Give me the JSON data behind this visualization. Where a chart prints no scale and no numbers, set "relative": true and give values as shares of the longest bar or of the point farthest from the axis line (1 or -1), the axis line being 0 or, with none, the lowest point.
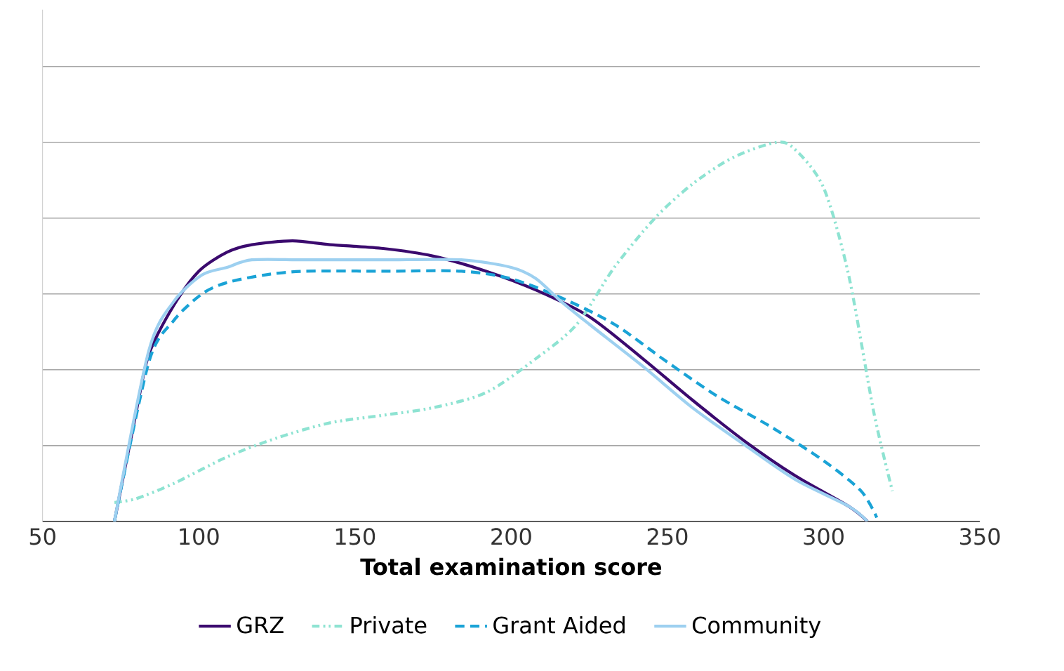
{
  "chart_data": {
    "type": "line",
    "relative": true,
    "xlabel": "Total examination score",
    "xlim": [
      50,
      350
    ],
    "xticks": [
      50,
      100,
      150,
      200,
      250,
      300,
      350
    ],
    "grid": "y",
    "legend": "bottom",
    "series": [
      {
        "name": "GRZ",
        "color": "#3b0a6e",
        "line_style": "solid",
        "x": [
          73,
          80,
          84,
          92,
          100,
          109,
          117,
          130,
          142,
          159,
          175,
          192,
          208,
          225,
          242,
          258,
          275,
          291,
          308,
          314
        ],
        "values": [
          0,
          0.29,
          0.44,
          0.57,
          0.66,
          0.71,
          0.73,
          0.74,
          0.73,
          0.72,
          0.7,
          0.66,
          0.61,
          0.54,
          0.43,
          0.32,
          0.21,
          0.12,
          0.04,
          0
        ]
      },
      {
        "name": "Private",
        "color": "#8ee3d2",
        "line_style": "dashdotdot",
        "x": [
          73,
          80,
          92,
          109,
          125,
          142,
          159,
          175,
          192,
          208,
          221,
          233,
          246,
          258,
          271,
          285,
          291,
          300,
          308,
          316,
          322
        ],
        "values": [
          0.05,
          0.06,
          0.1,
          0.17,
          0.22,
          0.26,
          0.28,
          0.3,
          0.34,
          0.43,
          0.52,
          0.67,
          0.8,
          0.89,
          0.96,
          1.0,
          0.98,
          0.88,
          0.65,
          0.29,
          0.08
        ]
      },
      {
        "name": "Grant Aided",
        "color": "#1aa3d6",
        "line_style": "dashed",
        "x": [
          73,
          84,
          92,
          101,
          109,
          121,
          134,
          159,
          184,
          200,
          216,
          233,
          250,
          266,
          283,
          300,
          312,
          317
        ],
        "values": [
          0,
          0.42,
          0.53,
          0.6,
          0.63,
          0.65,
          0.66,
          0.66,
          0.66,
          0.64,
          0.59,
          0.52,
          0.42,
          0.33,
          0.25,
          0.16,
          0.08,
          0.01
        ]
      },
      {
        "name": "Community",
        "color": "#9dd0f0",
        "line_style": "solid",
        "x": [
          73,
          84,
          92,
          101,
          109,
          117,
          134,
          159,
          184,
          200,
          208,
          216,
          225,
          242,
          258,
          275,
          291,
          308,
          314
        ],
        "values": [
          0,
          0.45,
          0.58,
          0.65,
          0.67,
          0.69,
          0.69,
          0.69,
          0.69,
          0.67,
          0.64,
          0.58,
          0.52,
          0.41,
          0.3,
          0.2,
          0.11,
          0.04,
          0
        ]
      }
    ]
  }
}
